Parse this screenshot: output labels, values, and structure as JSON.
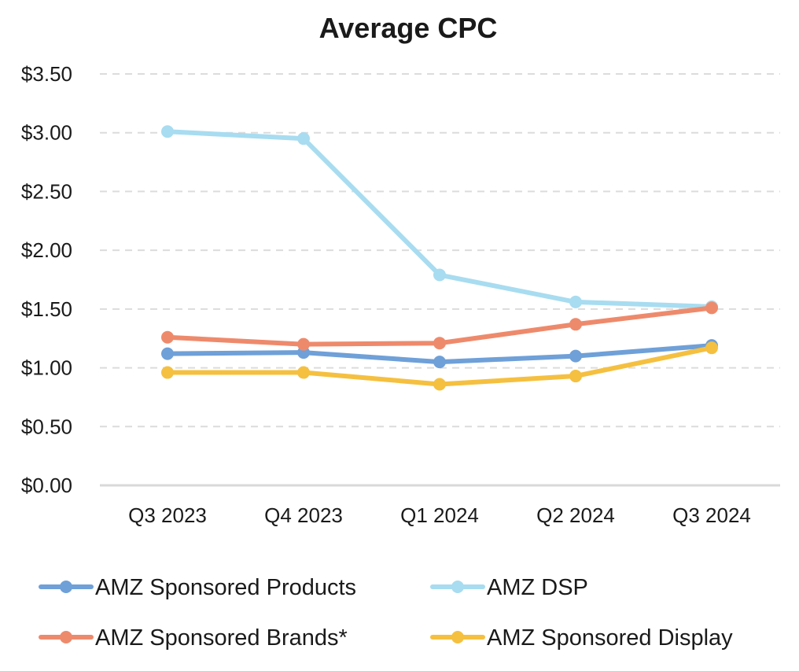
{
  "chart_data": {
    "type": "line",
    "title": "Average CPC",
    "xlabel": "",
    "ylabel": "",
    "categories": [
      "Q3 2023",
      "Q4 2023",
      "Q1 2024",
      "Q2 2024",
      "Q3 2024"
    ],
    "ylim": [
      0,
      3.5
    ],
    "ytick_values": [
      0,
      0.5,
      1.0,
      1.5,
      2.0,
      2.5,
      3.0,
      3.5
    ],
    "ytick_labels": [
      "$0.00",
      "$0.50",
      "$1.00",
      "$1.50",
      "$2.00",
      "$2.50",
      "$3.00",
      "$3.50"
    ],
    "grid": true,
    "legend_position": "bottom",
    "series": [
      {
        "name": "AMZ Sponsored Products",
        "color": "#6fa0d8",
        "values": [
          1.12,
          1.13,
          1.05,
          1.1,
          1.19
        ]
      },
      {
        "name": "AMZ DSP",
        "color": "#a8dcf0",
        "values": [
          3.01,
          2.95,
          1.79,
          1.56,
          1.52
        ]
      },
      {
        "name": "AMZ Sponsored Brands*",
        "color": "#ee8a6c",
        "values": [
          1.26,
          1.2,
          1.21,
          1.37,
          1.51
        ]
      },
      {
        "name": "AMZ Sponsored Display",
        "color": "#f5c040",
        "values": [
          0.96,
          0.96,
          0.86,
          0.93,
          1.17
        ]
      }
    ]
  }
}
